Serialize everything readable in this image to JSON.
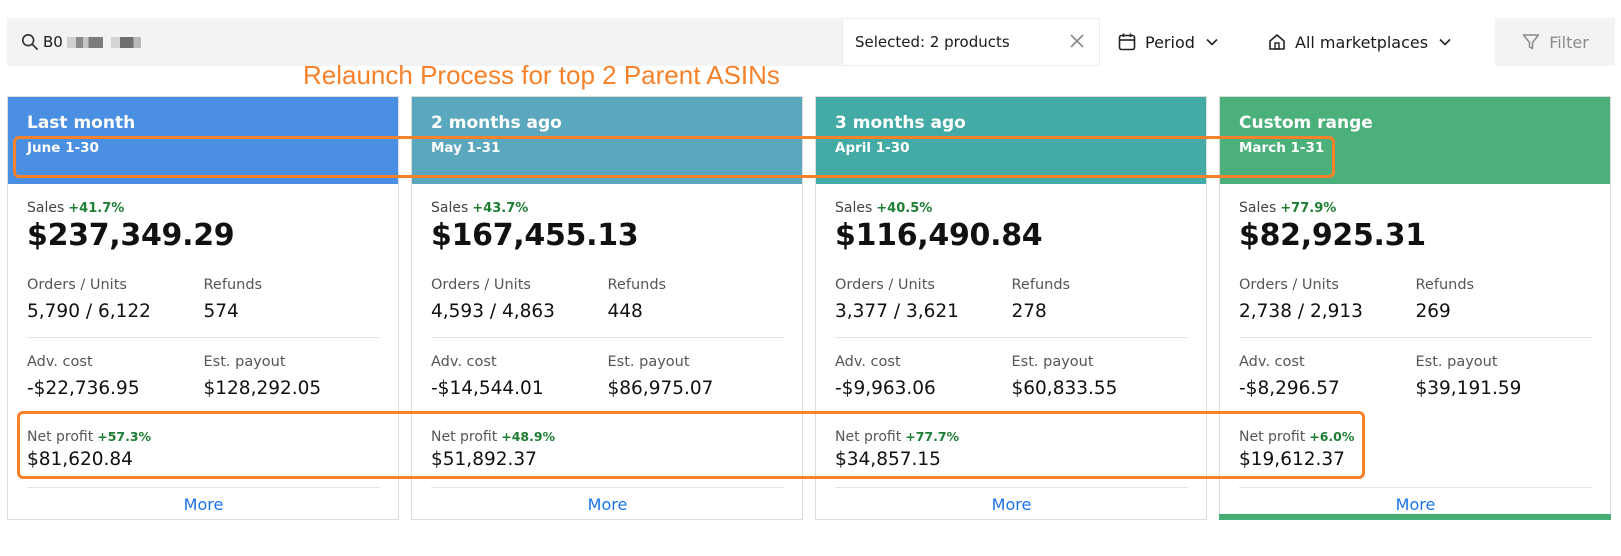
{
  "search": {
    "value": "B0"
  },
  "selected": {
    "label": "Selected: 2 products"
  },
  "period": {
    "label": "Period"
  },
  "marketplaces": {
    "label": "All marketplaces"
  },
  "filter": {
    "label": "Filter"
  },
  "annotation": {
    "text": "Relaunch Process for top 2 Parent ASINs"
  },
  "labels": {
    "sales": "Sales",
    "orders_units": "Orders / Units",
    "refunds": "Refunds",
    "adv_cost": "Adv. cost",
    "est_payout": "Est. payout",
    "net_profit": "Net profit",
    "more": "More"
  },
  "cards": [
    {
      "title": "Last month",
      "range": "June 1-30",
      "color": "#4b8fe2",
      "sales_change": "+41.7%",
      "sales": "$237,349.29",
      "orders_units": "5,790 / 6,122",
      "refunds": "574",
      "adv_cost": "-$22,736.95",
      "est_payout": "$128,292.05",
      "net_profit_change": "+57.3%",
      "net_profit": "$81,620.84"
    },
    {
      "title": "2 months ago",
      "range": "May 1-31",
      "color": "#5ba7bd",
      "sales_change": "+43.7%",
      "sales": "$167,455.13",
      "orders_units": "4,593 / 4,863",
      "refunds": "448",
      "adv_cost": "-$14,544.01",
      "est_payout": "$86,975.07",
      "net_profit_change": "+48.9%",
      "net_profit": "$51,892.37"
    },
    {
      "title": "3 months ago",
      "range": "April 1-30",
      "color": "#44aaa6",
      "sales_change": "+40.5%",
      "sales": "$116,490.84",
      "orders_units": "3,377 / 3,621",
      "refunds": "278",
      "adv_cost": "-$9,963.06",
      "est_payout": "$60,833.55",
      "net_profit_change": "+77.7%",
      "net_profit": "$34,857.15"
    },
    {
      "title": "Custom range",
      "range": "March 1-31",
      "color": "#4bb07a",
      "sales_change": "+77.9%",
      "sales": "$82,925.31",
      "orders_units": "2,738 / 2,913",
      "refunds": "269",
      "adv_cost": "-$8,296.57",
      "est_payout": "$39,191.59",
      "net_profit_change": "+6.0%",
      "net_profit": "$19,612.37"
    }
  ],
  "colors": {
    "highlight": "#f5822a",
    "accent_active": "#46ae74",
    "link": "#1a73e8",
    "positive": "#1e7e34"
  }
}
